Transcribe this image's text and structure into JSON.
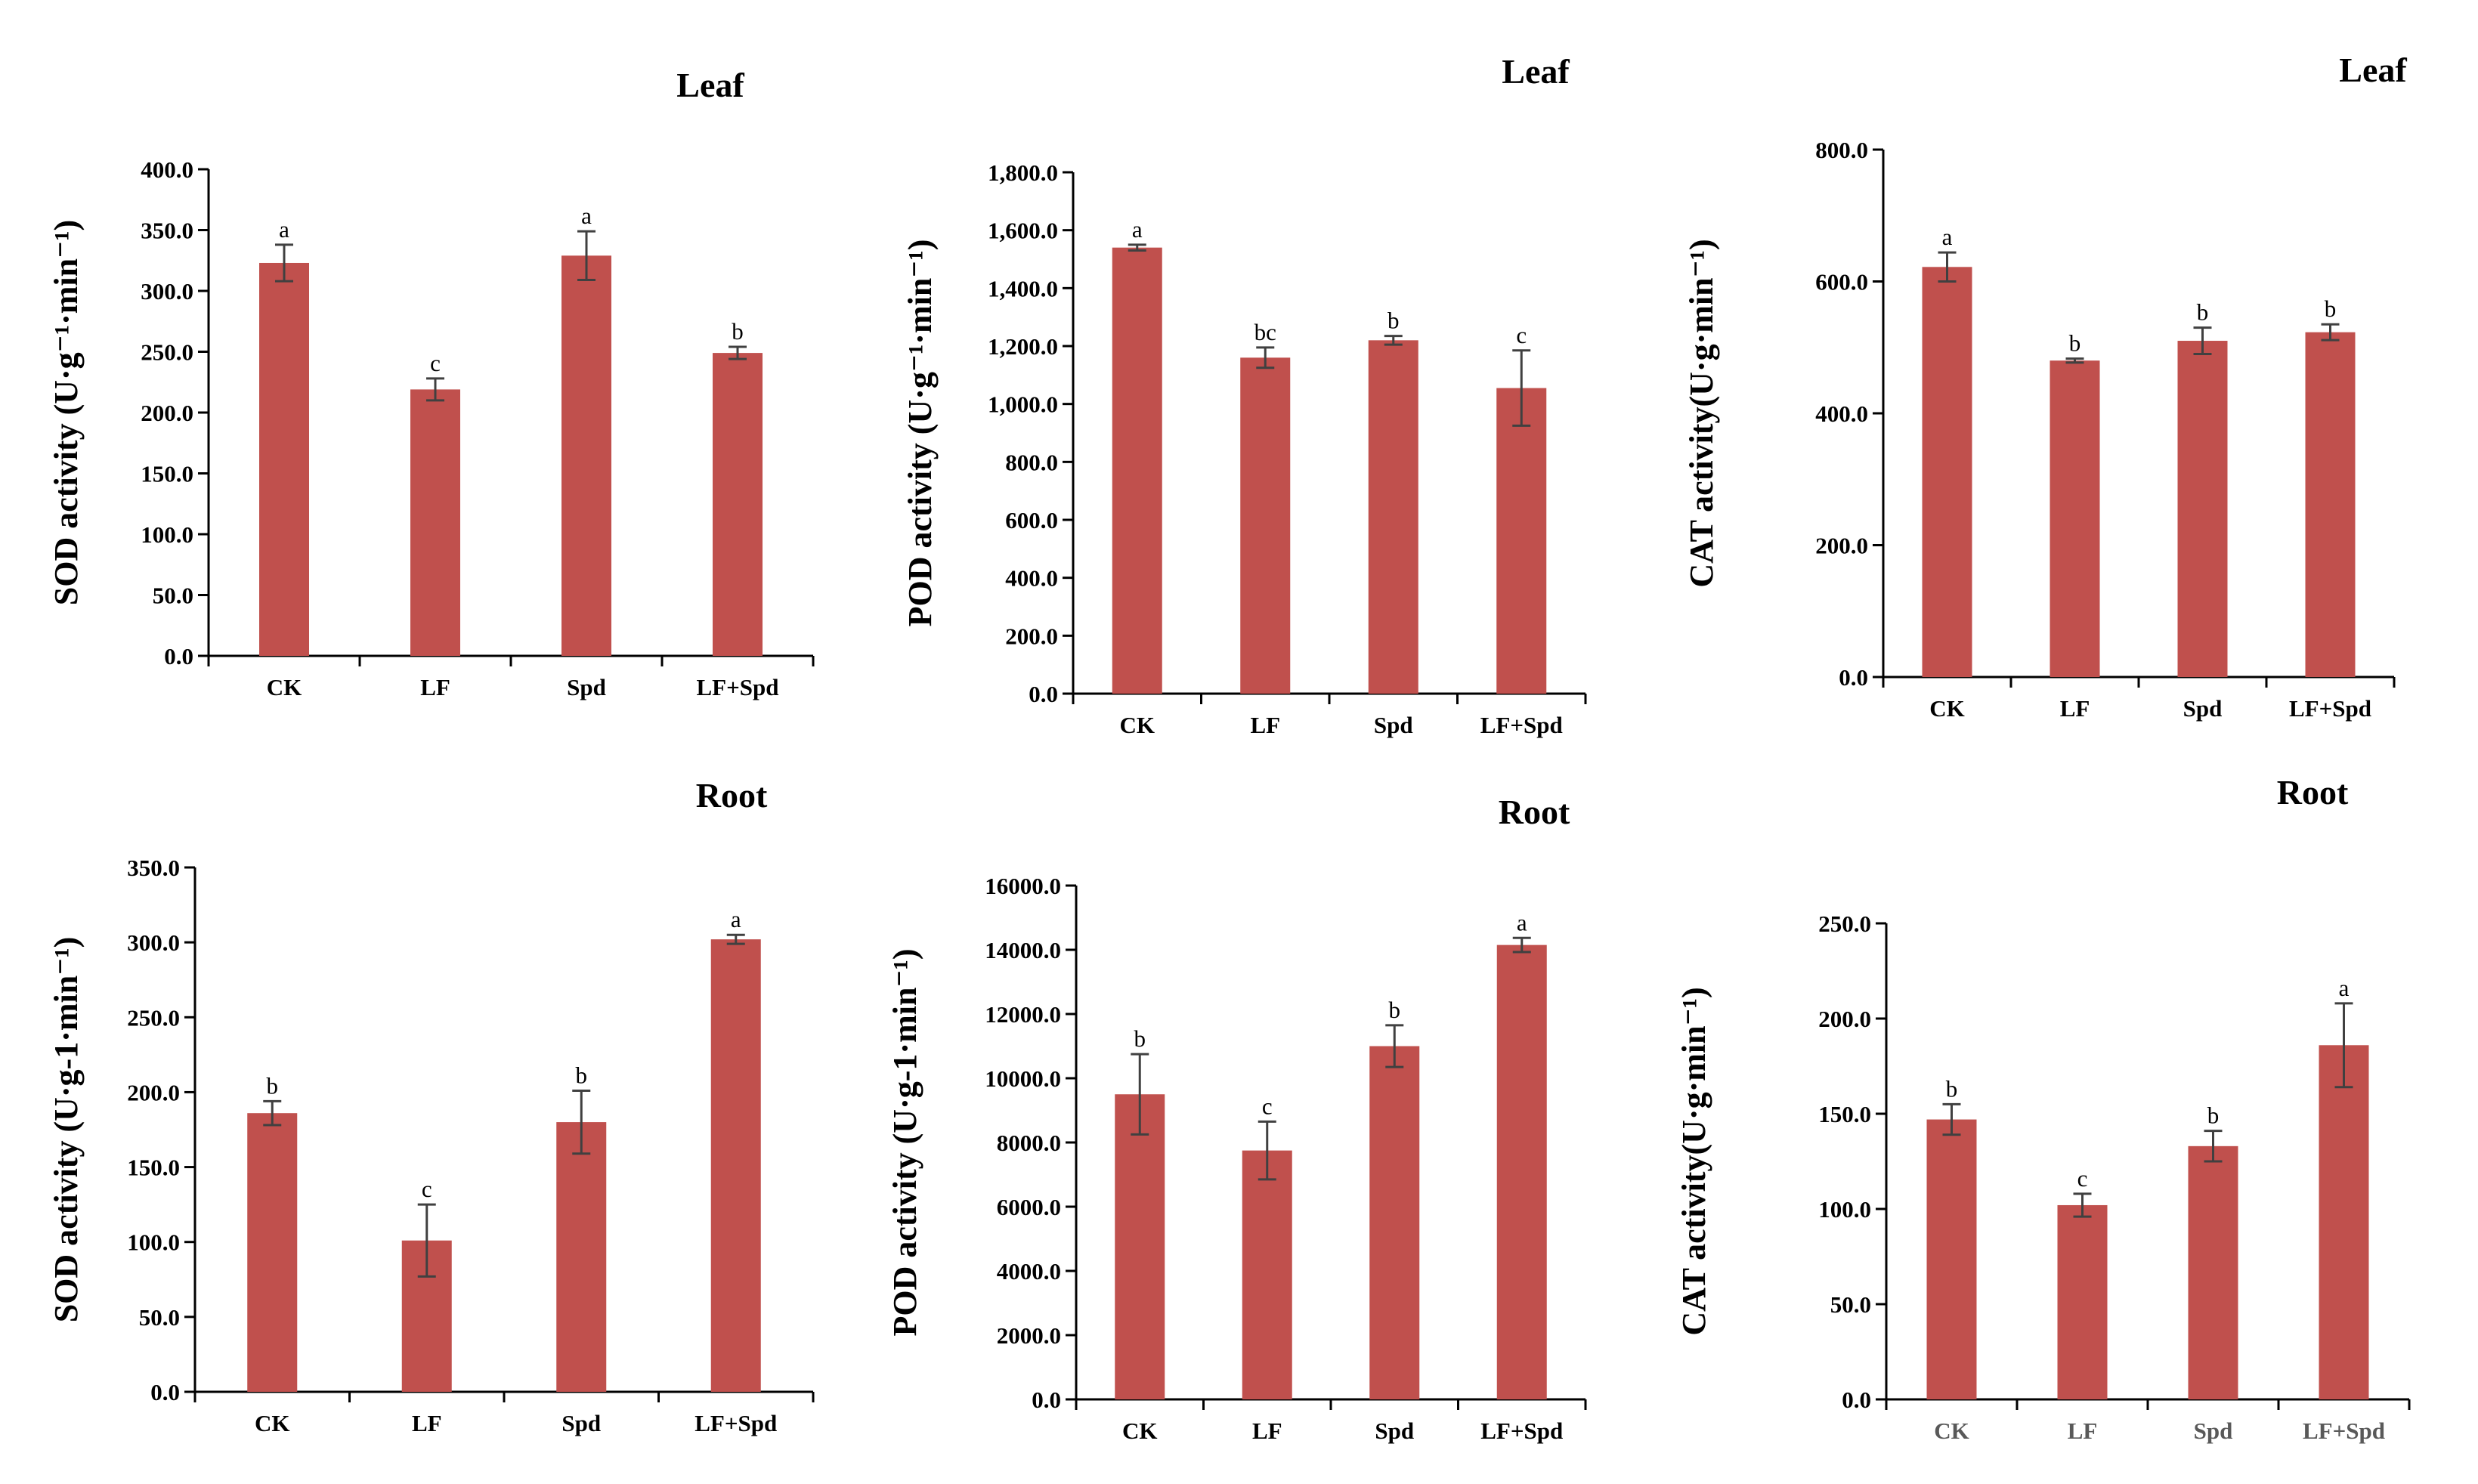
{
  "bar_color": "#C0504D",
  "chart_data": [
    {
      "type": "bar",
      "title": "Leaf",
      "ylabel": "SOD activity (U·g⁻¹·min⁻¹)",
      "categories": [
        "CK",
        "LF",
        "Spd",
        "LF+Spd"
      ],
      "values": [
        323,
        219,
        329,
        249
      ],
      "errors": [
        15,
        9,
        20,
        5
      ],
      "significance": [
        "a",
        "c",
        "a",
        "b"
      ],
      "ylim": [
        0,
        400
      ],
      "yticks": [
        "0.0",
        "50.0",
        "100.0",
        "150.0",
        "200.0",
        "250.0",
        "300.0",
        "350.0",
        "400.0"
      ]
    },
    {
      "type": "bar",
      "title": "Leaf",
      "ylabel": "POD activity (U·g⁻¹·min⁻¹)",
      "categories": [
        "CK",
        "LF",
        "Spd",
        "LF+Spd"
      ],
      "values": [
        1540,
        1160,
        1220,
        1055
      ],
      "errors": [
        10,
        35,
        15,
        130
      ],
      "significance": [
        "a",
        "bc",
        "b",
        "c"
      ],
      "ylim": [
        0,
        1800
      ],
      "yticks": [
        "0.0",
        "200.0",
        "400.0",
        "600.0",
        "800.0",
        "1,000.0",
        "1,200.0",
        "1,400.0",
        "1,600.0",
        "1,800.0"
      ]
    },
    {
      "type": "bar",
      "title": "Leaf",
      "ylabel": "CAT activity(U·g·min⁻¹)",
      "categories": [
        "CK",
        "LF",
        "Spd",
        "LF+Spd"
      ],
      "values": [
        622,
        480,
        510,
        523
      ],
      "errors": [
        22,
        3,
        20,
        12
      ],
      "significance": [
        "a",
        "b",
        "b",
        "b"
      ],
      "ylim": [
        0,
        800
      ],
      "yticks": [
        "0.0",
        "200.0",
        "400.0",
        "600.0",
        "800.0"
      ]
    },
    {
      "type": "bar",
      "title": "Root",
      "ylabel": "SOD activity (U·g-1·min⁻¹)",
      "categories": [
        "CK",
        "LF",
        "Spd",
        "LF+Spd"
      ],
      "values": [
        186,
        101,
        180,
        302
      ],
      "errors": [
        8,
        24,
        21,
        3
      ],
      "significance": [
        "b",
        "c",
        "b",
        "a"
      ],
      "ylim": [
        0,
        350
      ],
      "yticks": [
        "0.0",
        "50.0",
        "100.0",
        "150.0",
        "200.0",
        "250.0",
        "300.0",
        "350.0"
      ]
    },
    {
      "type": "bar",
      "title": "Root",
      "ylabel": "POD activity (U·g-1·min⁻¹)",
      "categories": [
        "CK",
        "LF",
        "Spd",
        "LF+Spd"
      ],
      "values": [
        9500,
        7750,
        11000,
        14150
      ],
      "errors": [
        1250,
        900,
        650,
        220
      ],
      "significance": [
        "b",
        "c",
        "b",
        "a"
      ],
      "ylim": [
        0,
        16000
      ],
      "yticks": [
        "0.0",
        "2000.0",
        "4000.0",
        "6000.0",
        "8000.0",
        "10000.0",
        "12000.0",
        "14000.0",
        "16000.0"
      ]
    },
    {
      "type": "bar",
      "title": "Root",
      "ylabel": "CAT activity(U·g·min⁻¹)",
      "categories": [
        "CK",
        "LF",
        "Spd",
        "LF+Spd"
      ],
      "values": [
        147,
        102,
        133,
        186
      ],
      "errors": [
        8,
        6,
        8,
        22
      ],
      "significance": [
        "b",
        "c",
        "b",
        "a"
      ],
      "ylim": [
        0,
        250
      ],
      "yticks": [
        "0.0",
        "50.0",
        "100.0",
        "150.0",
        "200.0",
        "250.0"
      ],
      "category_style": "gray"
    }
  ]
}
